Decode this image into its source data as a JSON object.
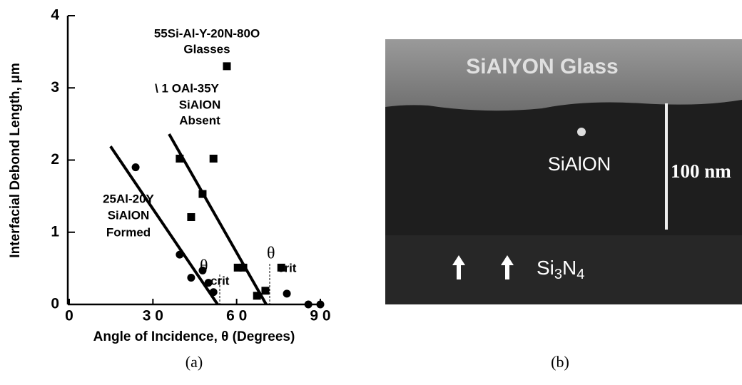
{
  "chart_data": {
    "type": "scatter",
    "xlabel": "Angle of Incidence, θ (Degrees)",
    "ylabel": "Interfacial Debond Length, μm",
    "xlim": [
      0,
      90
    ],
    "ylim": [
      0,
      4
    ],
    "xticks": [
      0,
      {
        "value": 30,
        "label": "3 0"
      },
      {
        "value": 60,
        "label": "6 0"
      },
      {
        "value": 90,
        "label": "9 0"
      }
    ],
    "yticks": [
      0,
      1,
      2,
      3,
      4
    ],
    "series": [
      {
        "marker": "square",
        "color": "#000000",
        "x": [
          56.5,
          39.6,
          51.7,
          47.8,
          43.7,
          60.4,
          62.4,
          67.3,
          70.3,
          76
        ],
        "values": [
          3.3,
          2.02,
          2.02,
          1.53,
          1.21,
          0.51,
          0.51,
          0.12,
          0.19,
          0.51
        ]
      },
      {
        "marker": "circle",
        "color": "#000000",
        "x": [
          23.8,
          39.6,
          43.7,
          47.8,
          49.9,
          51.7,
          78,
          85.7,
          90
        ],
        "values": [
          1.9,
          0.69,
          0.37,
          0.47,
          0.3,
          0.17,
          0.15,
          0,
          0
        ]
      }
    ],
    "fit_lines": [
      {
        "x": [
          14.8,
          53.2
        ],
        "values": [
          2.19,
          0
        ]
      },
      {
        "x": [
          35.8,
          70.6
        ],
        "values": [
          2.36,
          0
        ]
      }
    ],
    "annotations": [
      "55Si-Al-Y-20N-80O",
      "Glasses",
      "\\  1 OAl-35Y",
      "SiAlON",
      "Absent",
      "25Al-20Y",
      "SiAlON",
      "Formed"
    ],
    "theta_crit": [
      {
        "symbol": "θ",
        "subscript": "crit"
      },
      {
        "symbol": "θ",
        "subscript": "crit"
      }
    ],
    "caption": "(a)"
  },
  "micrograph": {
    "glass_label": "SiAlYON Glass",
    "sialon_label": "SiAlON",
    "scale_label": "100 nm",
    "substrate_label": [
      "Si",
      "3",
      "N",
      "4"
    ],
    "caption": "(b)"
  }
}
